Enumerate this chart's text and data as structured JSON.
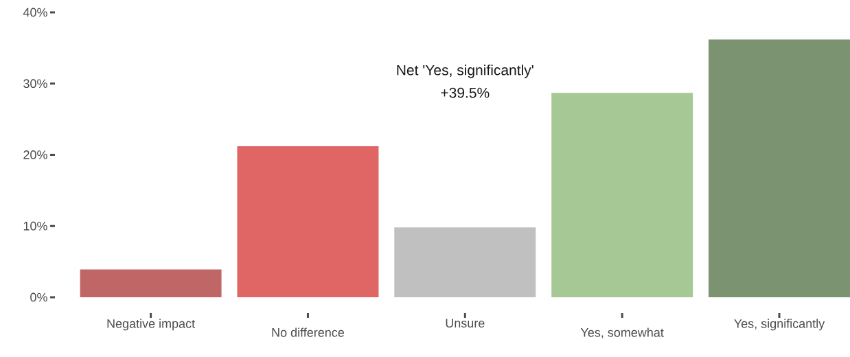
{
  "chart_data": {
    "type": "bar",
    "categories": [
      "Negative impact",
      "No difference",
      "Unsure",
      "Yes, somewhat",
      "Yes, significantly"
    ],
    "values": [
      3.9,
      21.2,
      9.8,
      28.7,
      36.2
    ],
    "colors": [
      "#c06666",
      "#e06666",
      "#c0c0c0",
      "#a6c895",
      "#7b9370"
    ],
    "ylim": [
      0,
      40
    ],
    "yticks": [
      {
        "value": 0,
        "label": "0%"
      },
      {
        "value": 10,
        "label": "10%"
      },
      {
        "value": 20,
        "label": "20%"
      },
      {
        "value": 30,
        "label": "30%"
      },
      {
        "value": 40,
        "label": "40%"
      }
    ],
    "annotations": [
      "Net 'Yes, significantly'",
      "+39.5%"
    ],
    "grid": false
  }
}
